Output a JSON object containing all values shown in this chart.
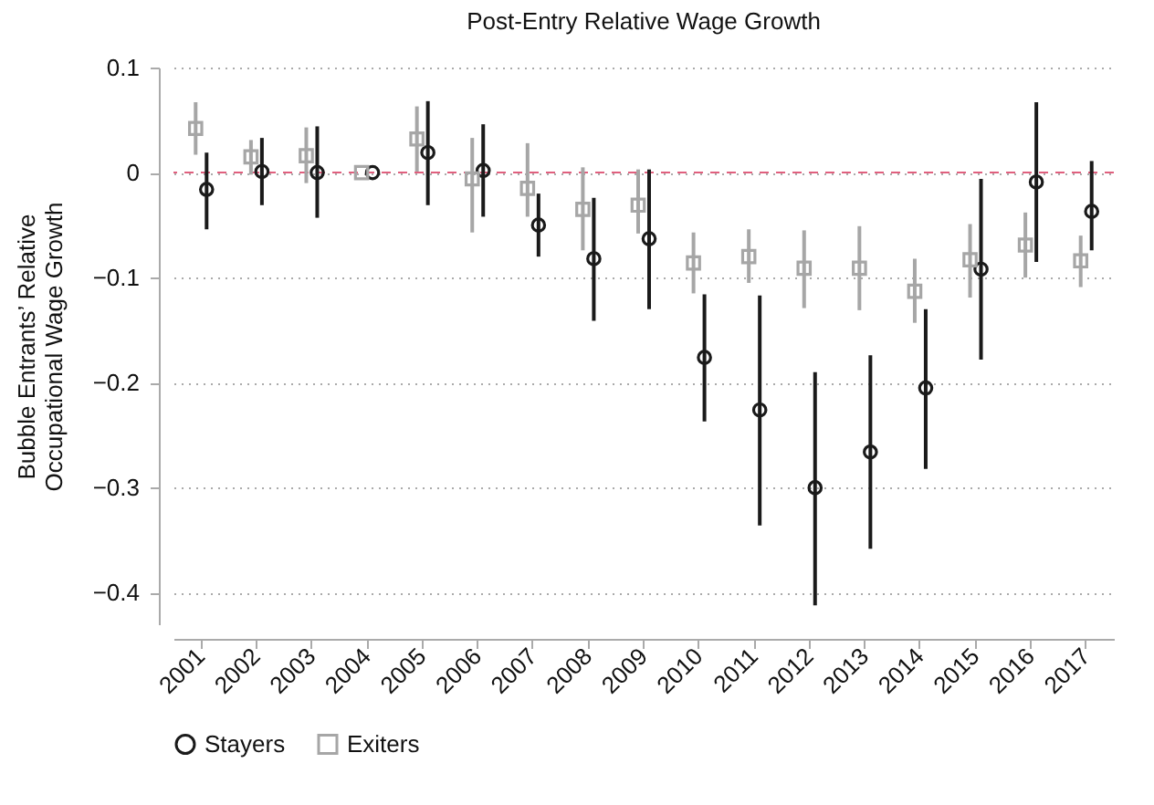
{
  "chart_data": {
    "type": "scatter",
    "title": "Post-Entry Relative Wage Growth",
    "ylabel": "Bubble Entrants’ Relative\nOccupational Wage Growth",
    "categories": [
      "2001",
      "2002",
      "2003",
      "2004",
      "2005",
      "2006",
      "2007",
      "2008",
      "2009",
      "2010",
      "2011",
      "2012",
      "2013",
      "2014",
      "2015",
      "2016",
      "2017"
    ],
    "series": [
      {
        "name": "Stayers",
        "color": "#1a1a1a",
        "marker": "circle",
        "values": [
          -0.016,
          0.001,
          0.0,
          0.0,
          0.019,
          0.002,
          -0.05,
          -0.082,
          -0.063,
          -0.176,
          -0.226,
          -0.3,
          -0.266,
          -0.205,
          -0.092,
          -0.009,
          -0.037
        ],
        "errors": [
          [
            -0.054,
            0.019
          ],
          [
            -0.031,
            0.033
          ],
          [
            -0.043,
            0.044
          ],
          null,
          [
            -0.031,
            0.068
          ],
          [
            -0.042,
            0.046
          ],
          [
            -0.08,
            -0.02
          ],
          [
            -0.141,
            -0.024
          ],
          [
            -0.13,
            0.003
          ],
          [
            -0.237,
            -0.116
          ],
          [
            -0.336,
            -0.117
          ],
          [
            -0.412,
            -0.19
          ],
          [
            -0.358,
            -0.174
          ],
          [
            -0.282,
            -0.13
          ],
          [
            -0.178,
            -0.006
          ],
          [
            -0.085,
            0.067
          ],
          [
            -0.074,
            0.011
          ]
        ]
      },
      {
        "name": "Exiters",
        "color": "#a6a6a6",
        "marker": "square",
        "values": [
          0.042,
          0.015,
          0.016,
          0.0,
          0.032,
          -0.006,
          -0.015,
          -0.035,
          -0.031,
          -0.086,
          -0.08,
          -0.091,
          -0.091,
          -0.113,
          -0.083,
          -0.069,
          -0.084
        ],
        "errors": [
          [
            0.017,
            0.067
          ],
          [
            -0.002,
            0.031
          ],
          [
            -0.01,
            0.043
          ],
          null,
          [
            0.001,
            0.063
          ],
          [
            -0.057,
            0.033
          ],
          [
            -0.042,
            0.028
          ],
          [
            -0.074,
            0.005
          ],
          [
            -0.058,
            0.003
          ],
          [
            -0.115,
            -0.057
          ],
          [
            -0.105,
            -0.054
          ],
          [
            -0.129,
            -0.055
          ],
          [
            -0.131,
            -0.051
          ],
          [
            -0.143,
            -0.082
          ],
          [
            -0.119,
            -0.049
          ],
          [
            -0.1,
            -0.038
          ],
          [
            -0.109,
            -0.06
          ]
        ]
      }
    ],
    "ylim": [
      -0.43,
      0.1
    ],
    "yticks": [
      0.1,
      0,
      {
        "value": -0.1,
        "label": "−0.1"
      },
      {
        "value": -0.2,
        "label": "−0.2"
      },
      {
        "value": -0.3,
        "label": "−0.3"
      },
      {
        "value": -0.4,
        "label": "−0.4"
      }
    ],
    "ref_lines": [
      {
        "axis": "y",
        "value": 0,
        "color": "#e0607e",
        "line_style": "dashed"
      }
    ],
    "grid": "y",
    "legend": "bottom"
  }
}
